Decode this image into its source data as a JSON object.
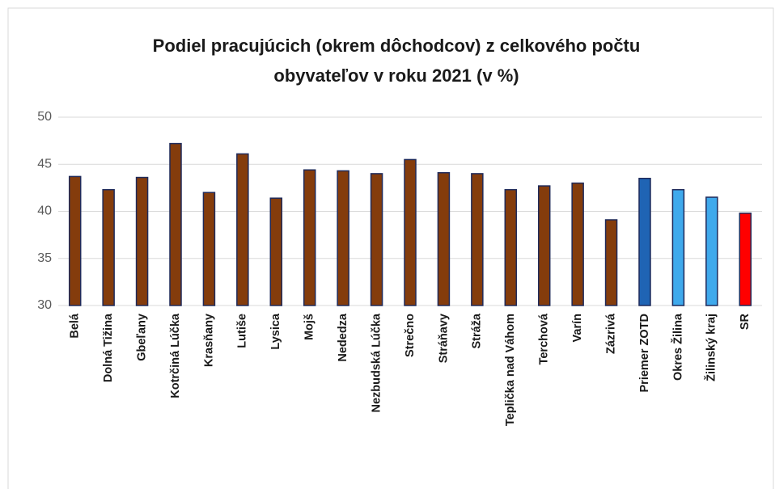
{
  "chart_data": {
    "type": "bar",
    "title": [
      "Podiel pracujúcich  (okrem dôchodcov)  z celkového počtu",
      "obyvateľov v roku 2021 (v %)"
    ],
    "categories": [
      "Belá",
      "Dolná Tižina",
      "Gbeľany",
      "Kotrčiná Lúčka",
      "Krasňany",
      "Lutiše",
      "Lysica",
      "Mojš",
      "Nededza",
      "Nezbudská Lúčka",
      "Strečno",
      "Stráňavy",
      "Stráža",
      "Teplička nad Váhom",
      "Terchová",
      "Varín",
      "Zázrivá",
      "Priemer ZOTD",
      "Okres Žilina",
      "Žilinský kraj",
      "SR"
    ],
    "values": [
      43.7,
      42.3,
      43.6,
      47.2,
      42.0,
      46.1,
      41.4,
      44.4,
      44.3,
      44.0,
      45.5,
      44.1,
      44.0,
      42.3,
      42.7,
      43.0,
      39.1,
      43.5,
      42.3,
      41.5,
      39.8
    ],
    "colors": [
      "#843c0c",
      "#843c0c",
      "#843c0c",
      "#843c0c",
      "#843c0c",
      "#843c0c",
      "#843c0c",
      "#843c0c",
      "#843c0c",
      "#843c0c",
      "#843c0c",
      "#843c0c",
      "#843c0c",
      "#843c0c",
      "#843c0c",
      "#843c0c",
      "#843c0c",
      "#1f64b4",
      "#3fa9ec",
      "#3fa9ec",
      "#ff0000"
    ],
    "ylim": [
      30,
      50
    ],
    "yticks": [
      30,
      35,
      40,
      45,
      50
    ],
    "grid": true
  }
}
